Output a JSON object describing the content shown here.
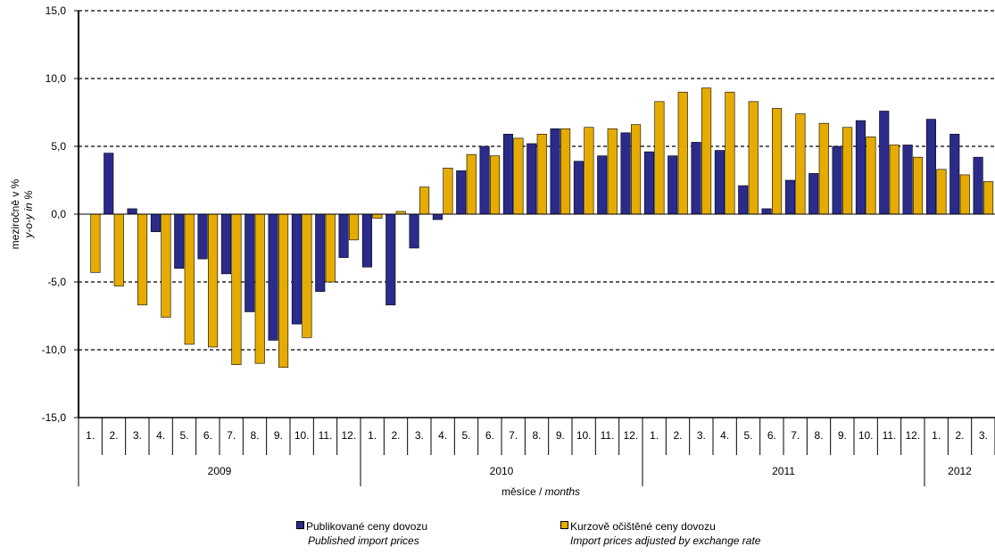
{
  "chart_data": {
    "type": "bar",
    "ylabel": "meziročně v %",
    "ylabel_en": "y-o-y in %",
    "xlabel": "měsíce",
    "xlabel_en": "months",
    "ylim": [
      -15,
      15
    ],
    "yticks": [
      "15,0",
      "10,0",
      "5,0",
      "0,0",
      "-5,0",
      "-10,0",
      "-15,0"
    ],
    "grid": true,
    "legend_position": "bottom",
    "categories": [
      "1.",
      "2.",
      "3.",
      "4.",
      "5.",
      "6.",
      "7.",
      "8.",
      "9.",
      "10.",
      "11.",
      "12.",
      "1.",
      "2.",
      "3.",
      "4.",
      "5.",
      "6.",
      "7.",
      "8.",
      "9.",
      "10.",
      "11.",
      "12.",
      "1.",
      "2.",
      "3.",
      "4.",
      "5.",
      "6.",
      "7.",
      "8.",
      "9.",
      "10.",
      "11.",
      "12.",
      "1.",
      "2.",
      "3."
    ],
    "years": [
      {
        "label": "2009",
        "months": 12
      },
      {
        "label": "2010",
        "months": 12
      },
      {
        "label": "2011",
        "months": 12
      },
      {
        "label": "2012",
        "months": 3
      }
    ],
    "series": [
      {
        "name": "Publikované ceny dovozu",
        "name_en": "Published import prices",
        "color": "#2b2b8c",
        "values": [
          0,
          4.5,
          0.4,
          -1.3,
          -4.0,
          -3.3,
          -4.4,
          -7.2,
          -9.3,
          -8.1,
          -5.7,
          -3.2,
          -3.9,
          -6.7,
          -2.5,
          -0.4,
          3.2,
          5.0,
          5.9,
          5.2,
          6.3,
          3.9,
          4.3,
          6.0,
          4.6,
          4.3,
          5.3,
          4.7,
          2.1,
          0.4,
          2.5,
          3.0,
          5.0,
          6.9,
          7.6,
          5.1,
          7.0,
          5.9,
          4.2
        ]
      },
      {
        "name": "Kurzově očištěné ceny dovozu",
        "name_en": "Import prices adjusted by exchange rate",
        "color": "#e6ab00",
        "values": [
          -4.3,
          -5.3,
          -6.7,
          -7.6,
          -9.6,
          -9.8,
          -11.1,
          -11.0,
          -11.3,
          -9.1,
          -5.0,
          -1.9,
          -0.3,
          0.2,
          2.0,
          3.4,
          4.4,
          4.3,
          5.6,
          5.9,
          6.3,
          6.4,
          6.3,
          6.6,
          8.3,
          9.0,
          9.3,
          9.0,
          8.3,
          7.8,
          7.4,
          6.7,
          6.4,
          5.7,
          5.1,
          4.2,
          3.3,
          2.9,
          2.4
        ]
      }
    ]
  }
}
